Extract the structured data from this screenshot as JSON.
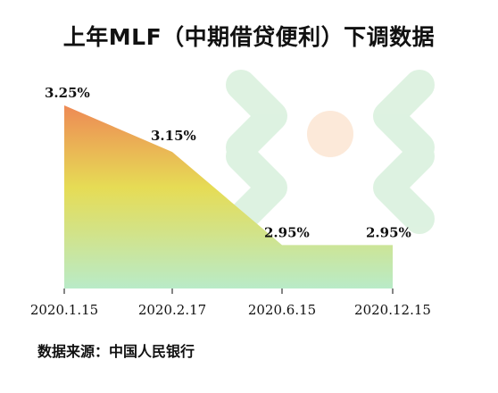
{
  "title": "上年MLF（中期借贷便利）下调数据",
  "source": "数据来源：中国人民银行",
  "colors": {
    "top": "#ee8a55",
    "mid": "#e6dc55",
    "bottom": "#b9ebc8",
    "watermark": "#d8f0dc",
    "watermark_center": "#fbe3d0"
  },
  "chart_data": {
    "type": "area",
    "title": "上年MLF（中期借贷便利）下调数据",
    "xlabel": "",
    "ylabel": "",
    "x": [
      "2020.1.15",
      "2020.2.17",
      "2020.6.15",
      "2020.12.15"
    ],
    "values": [
      3.25,
      3.15,
      2.95,
      2.95
    ],
    "labels": [
      "3.25%",
      "3.15%",
      "2.95%",
      "2.95%"
    ],
    "ylim": [
      2.92,
      3.25
    ],
    "grid": false,
    "legend": "none"
  }
}
